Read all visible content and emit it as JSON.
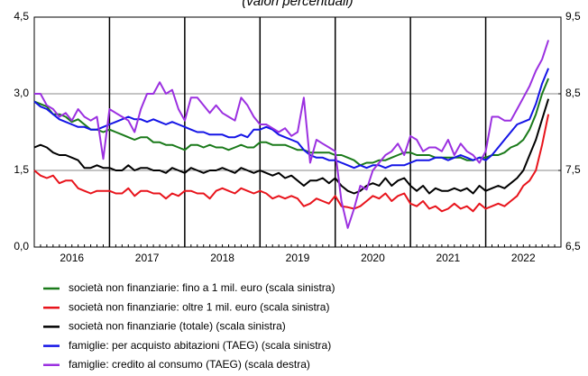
{
  "chart_data": {
    "type": "line",
    "title": "(valori percentuali)",
    "x": [
      2016,
      2016.083,
      2016.167,
      2016.25,
      2016.333,
      2016.417,
      2016.5,
      2016.583,
      2016.667,
      2016.75,
      2016.833,
      2016.917,
      2017,
      2017.083,
      2017.167,
      2017.25,
      2017.333,
      2017.417,
      2017.5,
      2017.583,
      2017.667,
      2017.75,
      2017.833,
      2017.917,
      2018,
      2018.083,
      2018.167,
      2018.25,
      2018.333,
      2018.417,
      2018.5,
      2018.583,
      2018.667,
      2018.75,
      2018.833,
      2018.917,
      2019,
      2019.083,
      2019.167,
      2019.25,
      2019.333,
      2019.417,
      2019.5,
      2019.583,
      2019.667,
      2019.75,
      2019.833,
      2019.917,
      2020,
      2020.083,
      2020.167,
      2020.25,
      2020.333,
      2020.417,
      2020.5,
      2020.583,
      2020.667,
      2020.75,
      2020.833,
      2020.917,
      2021,
      2021.083,
      2021.167,
      2021.25,
      2021.333,
      2021.417,
      2021.5,
      2021.583,
      2021.667,
      2021.75,
      2021.833,
      2021.917,
      2022,
      2022.083,
      2022.167,
      2022.25,
      2022.333,
      2022.417,
      2022.5,
      2022.583,
      2022.667,
      2022.75,
      2022.833
    ],
    "xlim": [
      2016,
      2023
    ],
    "xticks": [
      {
        "value": 2016.5,
        "label": "2016"
      },
      {
        "value": 2017.5,
        "label": "2017"
      },
      {
        "value": 2018.5,
        "label": "2018"
      },
      {
        "value": 2019.5,
        "label": "2019"
      },
      {
        "value": 2020.5,
        "label": "2020"
      },
      {
        "value": 2021.5,
        "label": "2021"
      },
      {
        "value": 2022.5,
        "label": "2022"
      }
    ],
    "ylim": [
      0,
      4.5
    ],
    "yticks": [
      {
        "value": 0,
        "label": "0,0"
      },
      {
        "value": 1.5,
        "label": "1,5"
      },
      {
        "value": 3,
        "label": "3,0"
      },
      {
        "value": 4.5,
        "label": "4,5"
      }
    ],
    "y2lim": [
      6.5,
      9.5
    ],
    "y2ticks": [
      {
        "value": 6.5,
        "label": "6,5"
      },
      {
        "value": 7.5,
        "label": "7,5"
      },
      {
        "value": 8.5,
        "label": "8,5"
      },
      {
        "value": 9.5,
        "label": "9,5"
      }
    ],
    "grid": true,
    "legend": "bottom",
    "series": [
      {
        "name": "società non finanziarie: fino a 1 mil. euro (scala sinistra)",
        "color": "#1a7a1a",
        "values": [
          2.85,
          2.8,
          2.75,
          2.6,
          2.6,
          2.55,
          2.45,
          2.5,
          2.4,
          2.3,
          2.3,
          2.25,
          2.3,
          2.25,
          2.2,
          2.15,
          2.1,
          2.15,
          2.15,
          2.05,
          2.05,
          2.0,
          2.0,
          1.95,
          1.9,
          2.0,
          2.0,
          1.95,
          2.0,
          1.95,
          1.95,
          1.9,
          1.95,
          2.0,
          1.95,
          1.95,
          2.05,
          2.05,
          2.0,
          2.0,
          2.0,
          1.95,
          1.9,
          1.9,
          1.85,
          1.85,
          1.85,
          1.85,
          1.8,
          1.8,
          1.75,
          1.7,
          1.6,
          1.65,
          1.65,
          1.7,
          1.7,
          1.75,
          1.8,
          1.85,
          1.85,
          1.8,
          1.8,
          1.8,
          1.75,
          1.75,
          1.75,
          1.75,
          1.75,
          1.7,
          1.7,
          1.75,
          1.75,
          1.8,
          1.8,
          1.85,
          1.95,
          2.0,
          2.1,
          2.3,
          2.6,
          3.0,
          3.3
        ]
      },
      {
        "name": "società non finanziarie: oltre 1 mil. euro (scala sinistra)",
        "color": "#e8141c",
        "values": [
          1.5,
          1.4,
          1.35,
          1.4,
          1.25,
          1.3,
          1.3,
          1.15,
          1.1,
          1.05,
          1.1,
          1.1,
          1.1,
          1.05,
          1.05,
          1.15,
          1.0,
          1.1,
          1.1,
          1.05,
          1.05,
          0.95,
          1.05,
          1.0,
          1.1,
          1.1,
          1.05,
          1.05,
          0.95,
          1.1,
          1.15,
          1.1,
          1.05,
          1.15,
          1.1,
          1.05,
          1.1,
          1.05,
          0.95,
          1.0,
          0.95,
          1.0,
          0.95,
          0.8,
          0.85,
          0.95,
          0.9,
          0.85,
          1.0,
          0.8,
          0.78,
          0.75,
          0.8,
          0.9,
          1.0,
          0.95,
          1.05,
          0.9,
          1.0,
          1.05,
          0.85,
          0.8,
          0.9,
          0.75,
          0.8,
          0.7,
          0.75,
          0.85,
          0.75,
          0.8,
          0.7,
          0.85,
          0.75,
          0.8,
          0.85,
          0.8,
          0.9,
          1.0,
          1.2,
          1.3,
          1.5,
          2.0,
          2.6
        ]
      },
      {
        "name": "società non finanziarie (totale) (scala sinistra)",
        "color": "#000000",
        "values": [
          1.95,
          2.0,
          1.95,
          1.85,
          1.8,
          1.8,
          1.75,
          1.7,
          1.55,
          1.55,
          1.6,
          1.55,
          1.55,
          1.5,
          1.5,
          1.6,
          1.5,
          1.55,
          1.55,
          1.5,
          1.5,
          1.45,
          1.55,
          1.5,
          1.45,
          1.55,
          1.5,
          1.45,
          1.5,
          1.5,
          1.55,
          1.5,
          1.45,
          1.55,
          1.5,
          1.45,
          1.5,
          1.45,
          1.4,
          1.45,
          1.35,
          1.4,
          1.3,
          1.2,
          1.3,
          1.3,
          1.35,
          1.25,
          1.35,
          1.2,
          1.1,
          1.05,
          1.1,
          1.2,
          1.25,
          1.2,
          1.35,
          1.2,
          1.3,
          1.35,
          1.2,
          1.1,
          1.2,
          1.05,
          1.15,
          1.1,
          1.1,
          1.15,
          1.1,
          1.15,
          1.05,
          1.2,
          1.1,
          1.15,
          1.2,
          1.15,
          1.25,
          1.35,
          1.5,
          1.8,
          2.1,
          2.5,
          2.9
        ]
      },
      {
        "name": "famiglie: per acquisto abitazioni (TAEG) (scala sinistra)",
        "color": "#1414e6",
        "values": [
          2.85,
          2.75,
          2.7,
          2.6,
          2.5,
          2.45,
          2.4,
          2.35,
          2.35,
          2.3,
          2.3,
          2.35,
          2.4,
          2.45,
          2.5,
          2.55,
          2.5,
          2.5,
          2.45,
          2.5,
          2.45,
          2.4,
          2.45,
          2.4,
          2.35,
          2.3,
          2.25,
          2.25,
          2.2,
          2.2,
          2.2,
          2.15,
          2.15,
          2.2,
          2.15,
          2.3,
          2.3,
          2.35,
          2.3,
          2.2,
          2.15,
          2.1,
          2.05,
          1.9,
          1.8,
          1.75,
          1.75,
          1.7,
          1.7,
          1.65,
          1.6,
          1.55,
          1.6,
          1.55,
          1.6,
          1.6,
          1.55,
          1.6,
          1.6,
          1.6,
          1.65,
          1.7,
          1.7,
          1.7,
          1.75,
          1.75,
          1.7,
          1.75,
          1.8,
          1.75,
          1.7,
          1.75,
          1.7,
          1.8,
          1.95,
          2.1,
          2.25,
          2.4,
          2.45,
          2.5,
          2.8,
          3.2,
          3.5
        ]
      },
      {
        "name": "famiglie: credito al consumo (TAEG) (scala destra)",
        "color": "#9b30e0",
        "axis": "y2",
        "values": [
          8.5,
          8.5,
          8.35,
          8.3,
          8.2,
          8.25,
          8.15,
          8.3,
          8.2,
          8.15,
          8.2,
          7.65,
          8.3,
          8.25,
          8.2,
          8.15,
          8.0,
          8.3,
          8.5,
          8.5,
          8.65,
          8.5,
          8.55,
          8.3,
          8.15,
          8.45,
          8.45,
          8.35,
          8.25,
          8.35,
          8.25,
          8.2,
          8.15,
          8.45,
          8.35,
          8.2,
          8.1,
          8.1,
          8.05,
          8.0,
          8.05,
          7.95,
          8.0,
          8.45,
          7.6,
          7.9,
          7.85,
          7.8,
          7.75,
          7.1,
          6.75,
          7.0,
          7.3,
          7.25,
          7.5,
          7.6,
          7.7,
          7.75,
          7.85,
          7.7,
          7.95,
          7.9,
          7.75,
          7.8,
          7.8,
          7.75,
          7.9,
          7.7,
          7.85,
          7.75,
          7.7,
          7.6,
          7.75,
          8.2,
          8.2,
          8.15,
          8.15,
          8.3,
          8.45,
          8.6,
          8.8,
          8.95,
          9.2
        ]
      }
    ]
  }
}
